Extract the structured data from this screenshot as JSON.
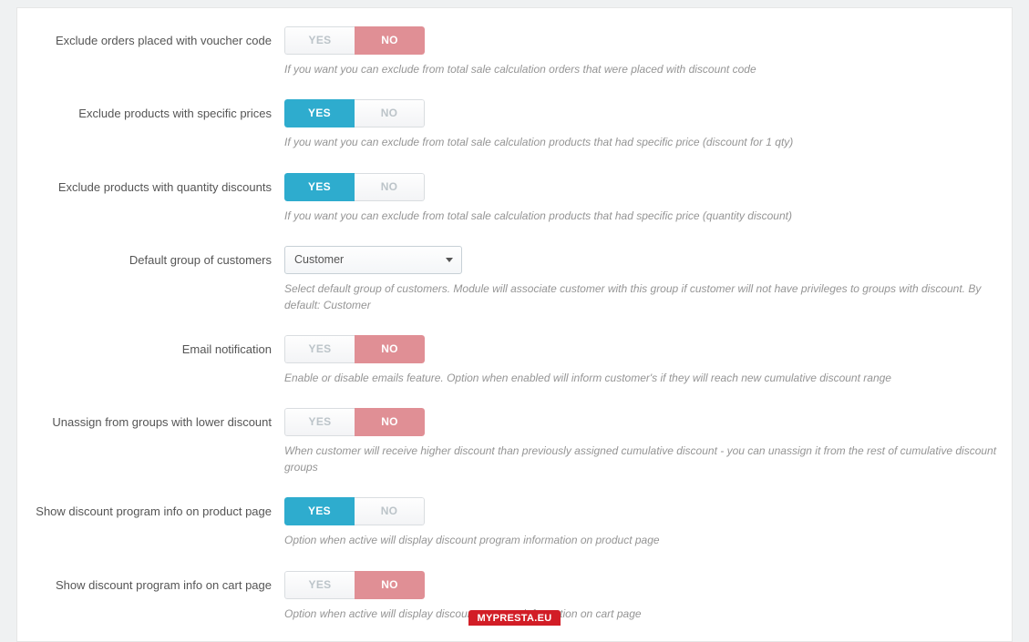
{
  "labels": {
    "yes": "YES",
    "no": "NO"
  },
  "colors": {
    "yes_active": "#2eacce",
    "no_active": "#e08f95",
    "inactive_bg": "#f5f6f8",
    "inactive_text": "#bcc4c9",
    "panel_bg": "#ffffff",
    "page_bg": "#eff1f2",
    "text": "#555555",
    "help_text": "#959595",
    "footer_bg": "#d21d26"
  },
  "fields": [
    {
      "key": "exclude_voucher",
      "label": "Exclude orders placed with voucher code",
      "type": "toggle",
      "value": "no",
      "help": "If you want you can exclude from total sale calculation orders that were placed with discount code"
    },
    {
      "key": "exclude_specific_prices",
      "label": "Exclude products with specific prices",
      "type": "toggle",
      "value": "yes",
      "help": "If you want you can exclude from total sale calculation products that had specific price (discount for 1 qty)"
    },
    {
      "key": "exclude_qty_discounts",
      "label": "Exclude products with quantity discounts",
      "type": "toggle",
      "value": "yes",
      "help": "If you want you can exclude from total sale calculation products that had specific price (quantity discount)"
    },
    {
      "key": "default_group",
      "label": "Default group of customers",
      "type": "select",
      "value": "Customer",
      "help": "Select default group of customers. Module will associate customer with this group if customer will not have privileges to groups with discount. By default: Customer"
    },
    {
      "key": "email_notification",
      "label": "Email notification",
      "type": "toggle",
      "value": "no",
      "help": "Enable or disable emails feature. Option when enabled will inform customer's if they will reach new cumulative discount range"
    },
    {
      "key": "unassign_lower",
      "label": "Unassign from groups with lower discount",
      "type": "toggle",
      "value": "no",
      "help": "When customer will receive higher discount than previously assigned cumulative discount - you can unassign it from the rest of cumulative discount groups"
    },
    {
      "key": "show_on_product",
      "label": "Show discount program info on product page",
      "type": "toggle",
      "value": "yes",
      "help": "Option when active will display discount program information on product page"
    },
    {
      "key": "show_on_cart",
      "label": "Show discount program info on cart page",
      "type": "toggle",
      "value": "no",
      "help": "Option when active will display discount program information on cart page"
    }
  ],
  "footer": "MYPRESTA.EU"
}
